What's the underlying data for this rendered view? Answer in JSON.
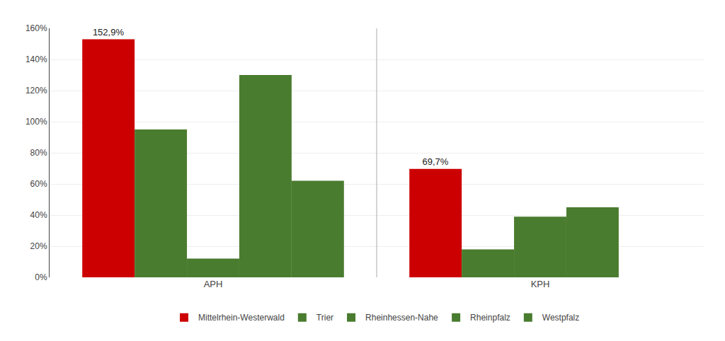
{
  "chart_data": {
    "type": "bar",
    "categories": [
      "APH",
      "KPH"
    ],
    "series": [
      {
        "name": "Mittelrhein-Westerwald",
        "color": "#CC0000",
        "values": [
          152.9,
          69.7
        ],
        "value_labels": [
          "152,9%",
          "69,7%"
        ],
        "data_labels": true
      },
      {
        "name": "Trier",
        "color": "#4A7C2F",
        "values": [
          95.0,
          18.0
        ]
      },
      {
        "name": "Rheinhessen-Nahe",
        "color": "#4A7C2F",
        "values": [
          12.0,
          39.0
        ]
      },
      {
        "name": "Rheinpfalz",
        "color": "#4A7C2F",
        "values": [
          130.0,
          45.0
        ]
      },
      {
        "name": "Westpfalz",
        "color": "#4A7C2F",
        "values": [
          62.0,
          null
        ]
      }
    ],
    "ylim": [
      0,
      160
    ],
    "yticks": [
      {
        "value": 0,
        "label": "0%"
      },
      {
        "value": 20,
        "label": "20%"
      },
      {
        "value": 40,
        "label": "40%"
      },
      {
        "value": 60,
        "label": "60%"
      },
      {
        "value": 80,
        "label": "80%"
      },
      {
        "value": 100,
        "label": "100%"
      },
      {
        "value": 120,
        "label": "120%"
      },
      {
        "value": 140,
        "label": "140%"
      },
      {
        "value": 160,
        "label": "160%"
      }
    ],
    "grid": true,
    "legend": "bottom"
  }
}
